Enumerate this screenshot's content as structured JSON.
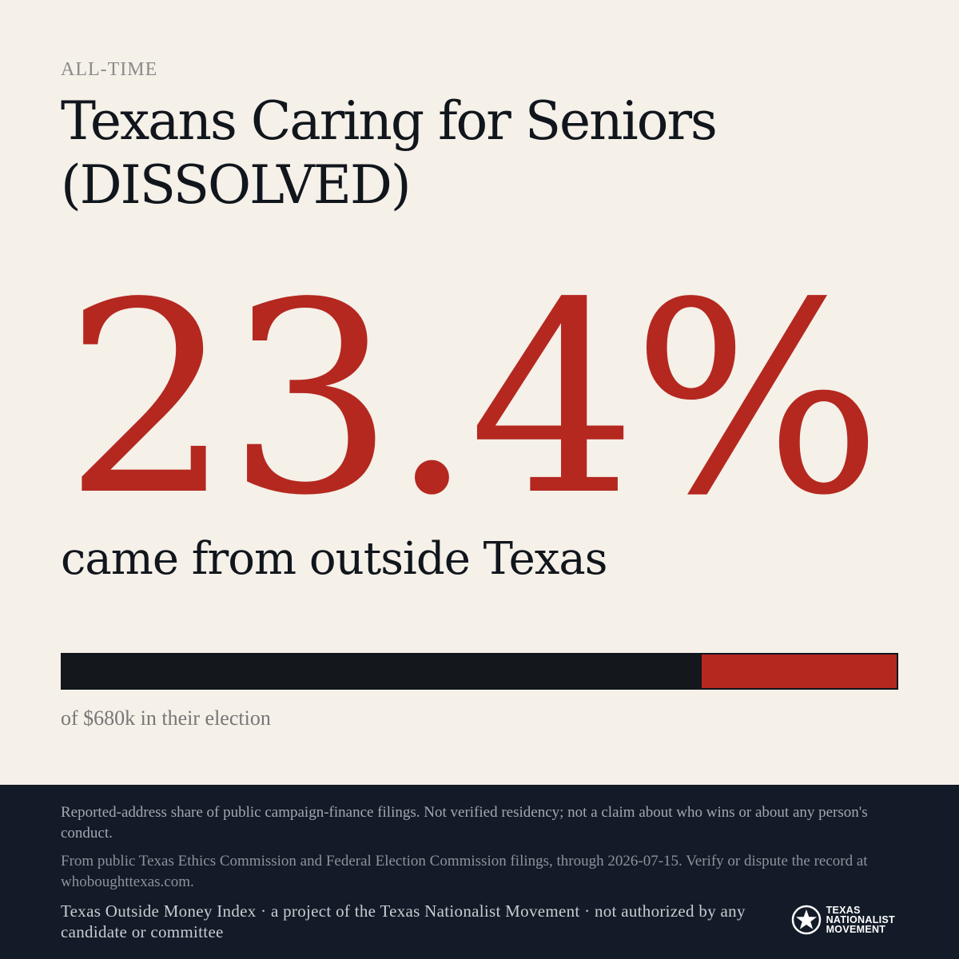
{
  "header": {
    "eyebrow": "ALL-TIME",
    "title": "Texans Caring for Seniors (DISSOLVED)"
  },
  "stat": {
    "percent_label": "23.4%",
    "out_of_state_share": 0.234,
    "subline": "came from outside Texas"
  },
  "bar": {
    "caption": "of $680k in their election",
    "colors": {
      "in_state": "#14171b",
      "out_of_state": "#b42820"
    }
  },
  "footer": {
    "note1": "Reported-address share of public campaign-finance filings. Not verified residency; not a claim about who wins or about any person's conduct.",
    "note2": "From public Texas Ethics Commission and Federal Election Commission filings, through 2026-07-15. Verify or dispute the record at whoboughttexas.com.",
    "attribution": "Texas Outside Money Index · a project of the Texas Nationalist Movement · not authorized by any candidate or committee",
    "logo": {
      "line1": "TEXAS",
      "line2": "NATIONALIST",
      "line3": "MOVEMENT",
      "icon": "star-emblem-icon"
    }
  },
  "theme": {
    "background": "#f5f0e8",
    "accent": "#b42820",
    "ink": "#11161d",
    "footer_bg": "#121b27"
  }
}
